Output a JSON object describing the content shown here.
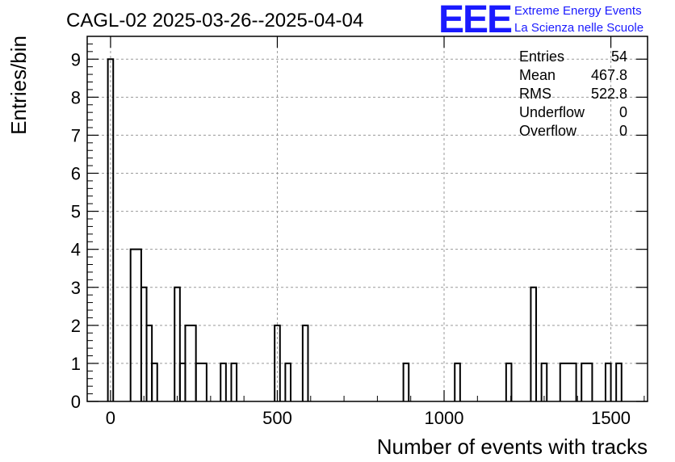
{
  "header": {
    "title": "CAGL-02 2025-03-26--2025-04-04"
  },
  "logo": {
    "mark": "EEE",
    "line1": "Extreme Energy Events",
    "line2": "La Scienza nelle Scuole",
    "color": "#1a1aff"
  },
  "stats": {
    "entries_label": "Entries",
    "entries_value": "54",
    "mean_label": "Mean",
    "mean_value": "467.8",
    "rms_label": "RMS",
    "rms_value": "522.8",
    "underflow_label": "Underflow",
    "underflow_value": "0",
    "overflow_label": "Overflow",
    "overflow_value": "0"
  },
  "chart_data": {
    "type": "histogram",
    "title": "CAGL-02 2025-03-26--2025-04-04",
    "xlabel": "Number of events with tracks",
    "ylabel": "Entries/bin",
    "xlim": [
      -70,
      1610
    ],
    "ylim": [
      0,
      9.6
    ],
    "grid": true,
    "legend": "none",
    "line_color": "#000000",
    "xticks": [
      0,
      500,
      1000,
      1500
    ],
    "xtick_labels": [
      "0",
      "500",
      "1000",
      "1500"
    ],
    "yticks": [
      0,
      1,
      2,
      3,
      4,
      5,
      6,
      7,
      8,
      9
    ],
    "ytick_labels": [
      "0",
      "1",
      "2",
      "3",
      "4",
      "5",
      "6",
      "7",
      "8",
      "9"
    ],
    "bins": [
      {
        "x0": -8,
        "x1": 8,
        "count": 9
      },
      {
        "x0": 60,
        "x1": 92,
        "count": 4
      },
      {
        "x0": 92,
        "x1": 108,
        "count": 3
      },
      {
        "x0": 108,
        "x1": 124,
        "count": 2
      },
      {
        "x0": 124,
        "x1": 140,
        "count": 1
      },
      {
        "x0": 192,
        "x1": 208,
        "count": 3
      },
      {
        "x0": 208,
        "x1": 224,
        "count": 1
      },
      {
        "x0": 224,
        "x1": 256,
        "count": 2
      },
      {
        "x0": 256,
        "x1": 288,
        "count": 1
      },
      {
        "x0": 330,
        "x1": 346,
        "count": 1
      },
      {
        "x0": 362,
        "x1": 378,
        "count": 1
      },
      {
        "x0": 492,
        "x1": 508,
        "count": 2
      },
      {
        "x0": 524,
        "x1": 540,
        "count": 1
      },
      {
        "x0": 576,
        "x1": 592,
        "count": 2
      },
      {
        "x0": 878,
        "x1": 894,
        "count": 1
      },
      {
        "x0": 1032,
        "x1": 1048,
        "count": 1
      },
      {
        "x0": 1186,
        "x1": 1202,
        "count": 1
      },
      {
        "x0": 1260,
        "x1": 1276,
        "count": 3
      },
      {
        "x0": 1292,
        "x1": 1308,
        "count": 1
      },
      {
        "x0": 1348,
        "x1": 1396,
        "count": 1
      },
      {
        "x0": 1412,
        "x1": 1444,
        "count": 1
      },
      {
        "x0": 1484,
        "x1": 1500,
        "count": 1
      },
      {
        "x0": 1516,
        "x1": 1532,
        "count": 1
      }
    ]
  }
}
